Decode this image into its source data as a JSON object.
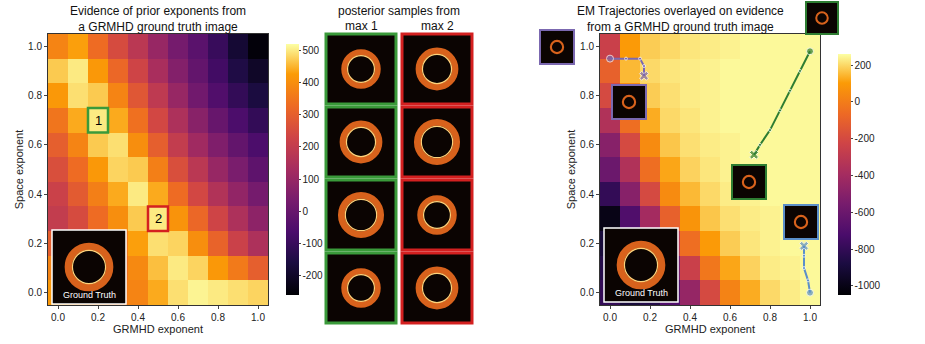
{
  "chart_data": [
    {
      "type": "heatmap",
      "title": "Evidence of prior exponents from a GRMHD ground truth image",
      "x_label": "GRMHD exponent",
      "y_label": "Space exponent",
      "x": [
        0,
        0.1,
        0.2,
        0.3,
        0.4,
        0.5,
        0.6,
        0.7,
        0.8,
        0.9,
        1.0
      ],
      "y": [
        0,
        0.1,
        0.2,
        0.3,
        0.4,
        0.5,
        0.6,
        0.7,
        0.8,
        0.9,
        1.0
      ],
      "z": [
        [
          420,
          400,
          380,
          360,
          380,
          440,
          490,
          510,
          500,
          490,
          480
        ],
        [
          380,
          360,
          340,
          340,
          390,
          460,
          500,
          480,
          420,
          360,
          300
        ],
        [
          300,
          280,
          300,
          360,
          430,
          490,
          480,
          400,
          310,
          220,
          150
        ],
        [
          200,
          250,
          330,
          400,
          470,
          500,
          410,
          320,
          230,
          150,
          80
        ],
        [
          220,
          290,
          370,
          440,
          500,
          440,
          330,
          240,
          160,
          90,
          30
        ],
        [
          260,
          330,
          420,
          480,
          470,
          370,
          260,
          180,
          100,
          40,
          -20
        ],
        [
          300,
          380,
          470,
          490,
          400,
          300,
          200,
          120,
          50,
          -10,
          -60
        ],
        [
          350,
          440,
          500,
          440,
          340,
          240,
          150,
          70,
          0,
          -60,
          -110
        ],
        [
          420,
          490,
          470,
          380,
          280,
          190,
          100,
          20,
          -50,
          -110,
          -160
        ],
        [
          470,
          500,
          420,
          320,
          230,
          140,
          60,
          -10,
          -80,
          -150,
          -200
        ],
        [
          380,
          430,
          330,
          250,
          180,
          100,
          30,
          -30,
          -100,
          -180,
          -250
        ]
      ],
      "xlim": [
        -0.05,
        1.05
      ],
      "ylim": [
        -0.05,
        1.05
      ],
      "xticks": [
        {
          "value": 0,
          "label": "0.0"
        },
        {
          "value": 0.2,
          "label": "0.2"
        },
        {
          "value": 0.4,
          "label": "0.4"
        },
        {
          "value": 0.6,
          "label": "0.6"
        },
        {
          "value": 0.8,
          "label": "0.8"
        },
        {
          "value": 1.0,
          "label": "1.0"
        }
      ],
      "yticks": [
        {
          "value": 0,
          "label": "0.0"
        },
        {
          "value": 0.2,
          "label": "0.2"
        },
        {
          "value": 0.4,
          "label": "0.4"
        },
        {
          "value": 0.6,
          "label": "0.6"
        },
        {
          "value": 0.8,
          "label": "0.8"
        },
        {
          "value": 1.0,
          "label": "1.0"
        }
      ],
      "colorbar_range": [
        -260,
        520
      ],
      "colorbar_ticks": [
        -200,
        -100,
        0,
        100,
        200,
        300,
        400,
        500
      ],
      "boxes": [
        {
          "text": "1",
          "x": 0.2,
          "y": 0.7,
          "color": "#3a9a3a"
        },
        {
          "text": "2",
          "x": 0.5,
          "y": 0.3,
          "color": "#d42020"
        }
      ],
      "inset": "Ground Truth"
    },
    {
      "type": "heatmap",
      "title": "EM Trajectories overlayed on evidence from a GRMHD ground truth image",
      "x_label": "GRMHD exponent",
      "y_label": "Space exponent",
      "x": [
        0,
        0.1,
        0.2,
        0.3,
        0.4,
        0.5,
        0.6,
        0.7,
        0.8,
        0.9,
        1.0
      ],
      "y": [
        0,
        0.1,
        0.2,
        0.3,
        0.4,
        0.5,
        0.6,
        0.7,
        0.8,
        0.9,
        1.0
      ],
      "z": [
        [
          -800,
          -900,
          -850,
          -700,
          -450,
          -200,
          20,
          130,
          200,
          230,
          250
        ],
        [
          -850,
          -900,
          -800,
          -550,
          -250,
          -20,
          120,
          190,
          230,
          240,
          250
        ],
        [
          -900,
          -850,
          -650,
          -300,
          -50,
          100,
          180,
          220,
          240,
          250,
          250
        ],
        [
          -1000,
          -700,
          -400,
          -100,
          80,
          170,
          210,
          230,
          240,
          250,
          250
        ],
        [
          -800,
          -500,
          -200,
          50,
          150,
          200,
          230,
          240,
          250,
          250,
          250
        ],
        [
          -600,
          -350,
          -50,
          120,
          190,
          220,
          240,
          250,
          250,
          250,
          250
        ],
        [
          -500,
          -200,
          50,
          170,
          210,
          230,
          240,
          250,
          250,
          250,
          250
        ],
        [
          -350,
          -50,
          130,
          200,
          220,
          240,
          250,
          250,
          250,
          250,
          250
        ],
        [
          -200,
          50,
          180,
          210,
          230,
          240,
          250,
          250,
          250,
          250,
          250
        ],
        [
          -100,
          150,
          200,
          220,
          230,
          240,
          250,
          250,
          250,
          250,
          250
        ],
        [
          -250,
          100,
          180,
          200,
          220,
          230,
          240,
          250,
          250,
          250,
          250
        ]
      ],
      "xlim": [
        -0.05,
        1.05
      ],
      "ylim": [
        -0.05,
        1.05
      ],
      "xticks": [
        {
          "value": 0,
          "label": "0.0"
        },
        {
          "value": 0.2,
          "label": "0.2"
        },
        {
          "value": 0.4,
          "label": "0.4"
        },
        {
          "value": 0.6,
          "label": "0.6"
        },
        {
          "value": 0.8,
          "label": "0.8"
        },
        {
          "value": 1.0,
          "label": "1.0"
        }
      ],
      "yticks": [
        {
          "value": 0,
          "label": "0.0"
        },
        {
          "value": 0.2,
          "label": "0.2"
        },
        {
          "value": 0.4,
          "label": "0.4"
        },
        {
          "value": 0.6,
          "label": "0.6"
        },
        {
          "value": 0.8,
          "label": "0.8"
        },
        {
          "value": 1.0,
          "label": "1.0"
        }
      ],
      "colorbar_range": [
        -1050,
        260
      ],
      "colorbar_ticks": [
        -1000,
        -800,
        -600,
        -400,
        -200,
        0,
        200
      ],
      "series": [
        {
          "type": "line",
          "color": "#7b68b0",
          "x": [
            0.0,
            0.08,
            0.15,
            0.17,
            0.17
          ],
          "y": [
            0.95,
            0.95,
            0.95,
            0.92,
            0.88
          ]
        },
        {
          "type": "line",
          "color": "#2e7d32",
          "x": [
            1.0,
            0.95,
            0.9,
            0.85,
            0.8,
            0.75,
            0.72
          ],
          "y": [
            0.98,
            0.9,
            0.82,
            0.74,
            0.66,
            0.6,
            0.56
          ]
        },
        {
          "type": "line",
          "color": "#5b8fc9",
          "x": [
            1.0,
            0.99,
            0.97,
            0.97,
            0.97
          ],
          "y": [
            0.0,
            0.05,
            0.1,
            0.15,
            0.19
          ]
        }
      ],
      "inset": "Ground Truth"
    }
  ],
  "panel": {
    "title": "posterior samples from",
    "columns": [
      {
        "label": "max 1",
        "color": "#3a9a3a"
      },
      {
        "label": "max 2",
        "color": "#d42020"
      }
    ],
    "rows": 4
  }
}
